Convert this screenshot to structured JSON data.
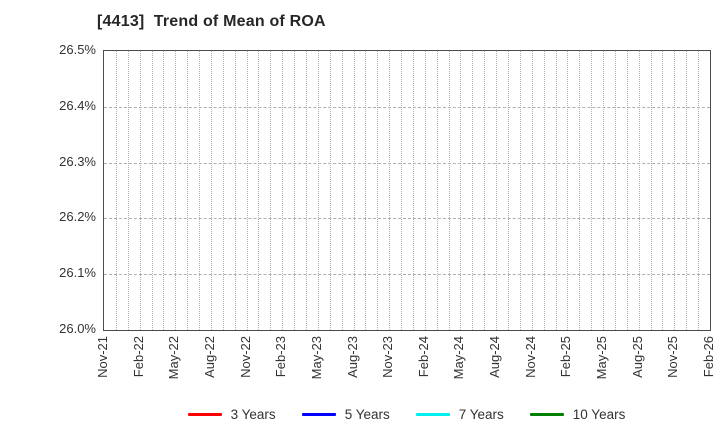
{
  "header": {
    "title": "[4413]  Trend of Mean of ROA"
  },
  "chart_data": {
    "type": "line",
    "title": "[4413]  Trend of Mean of ROA",
    "xlabel": "",
    "ylabel": "",
    "x": [
      "Nov-21",
      "Feb-22",
      "May-22",
      "Aug-22",
      "Nov-22",
      "Feb-23",
      "May-23",
      "Aug-23",
      "Nov-23",
      "Feb-24",
      "May-24",
      "Aug-24",
      "Nov-24",
      "Feb-25",
      "May-25",
      "Aug-25",
      "Nov-25",
      "Feb-26"
    ],
    "yticks": [
      "26.0%",
      "26.1%",
      "26.2%",
      "26.3%",
      "26.4%",
      "26.5%"
    ],
    "ylim": [
      26.0,
      26.5
    ],
    "grid": true,
    "minor_x_divisions_per_interval": 3,
    "legend_position": "bottom",
    "series": [
      {
        "name": "3 Years",
        "color": "#ff0000",
        "values": []
      },
      {
        "name": "5 Years",
        "color": "#0000ff",
        "values": []
      },
      {
        "name": "7 Years",
        "color": "#00eeee",
        "values": []
      },
      {
        "name": "10 Years",
        "color": "#008000",
        "values": []
      }
    ],
    "colors": {
      "grid": "#b0b0b0",
      "plot_border": "#4d4d4d",
      "text": "#333333",
      "title_text": "#262626"
    }
  }
}
